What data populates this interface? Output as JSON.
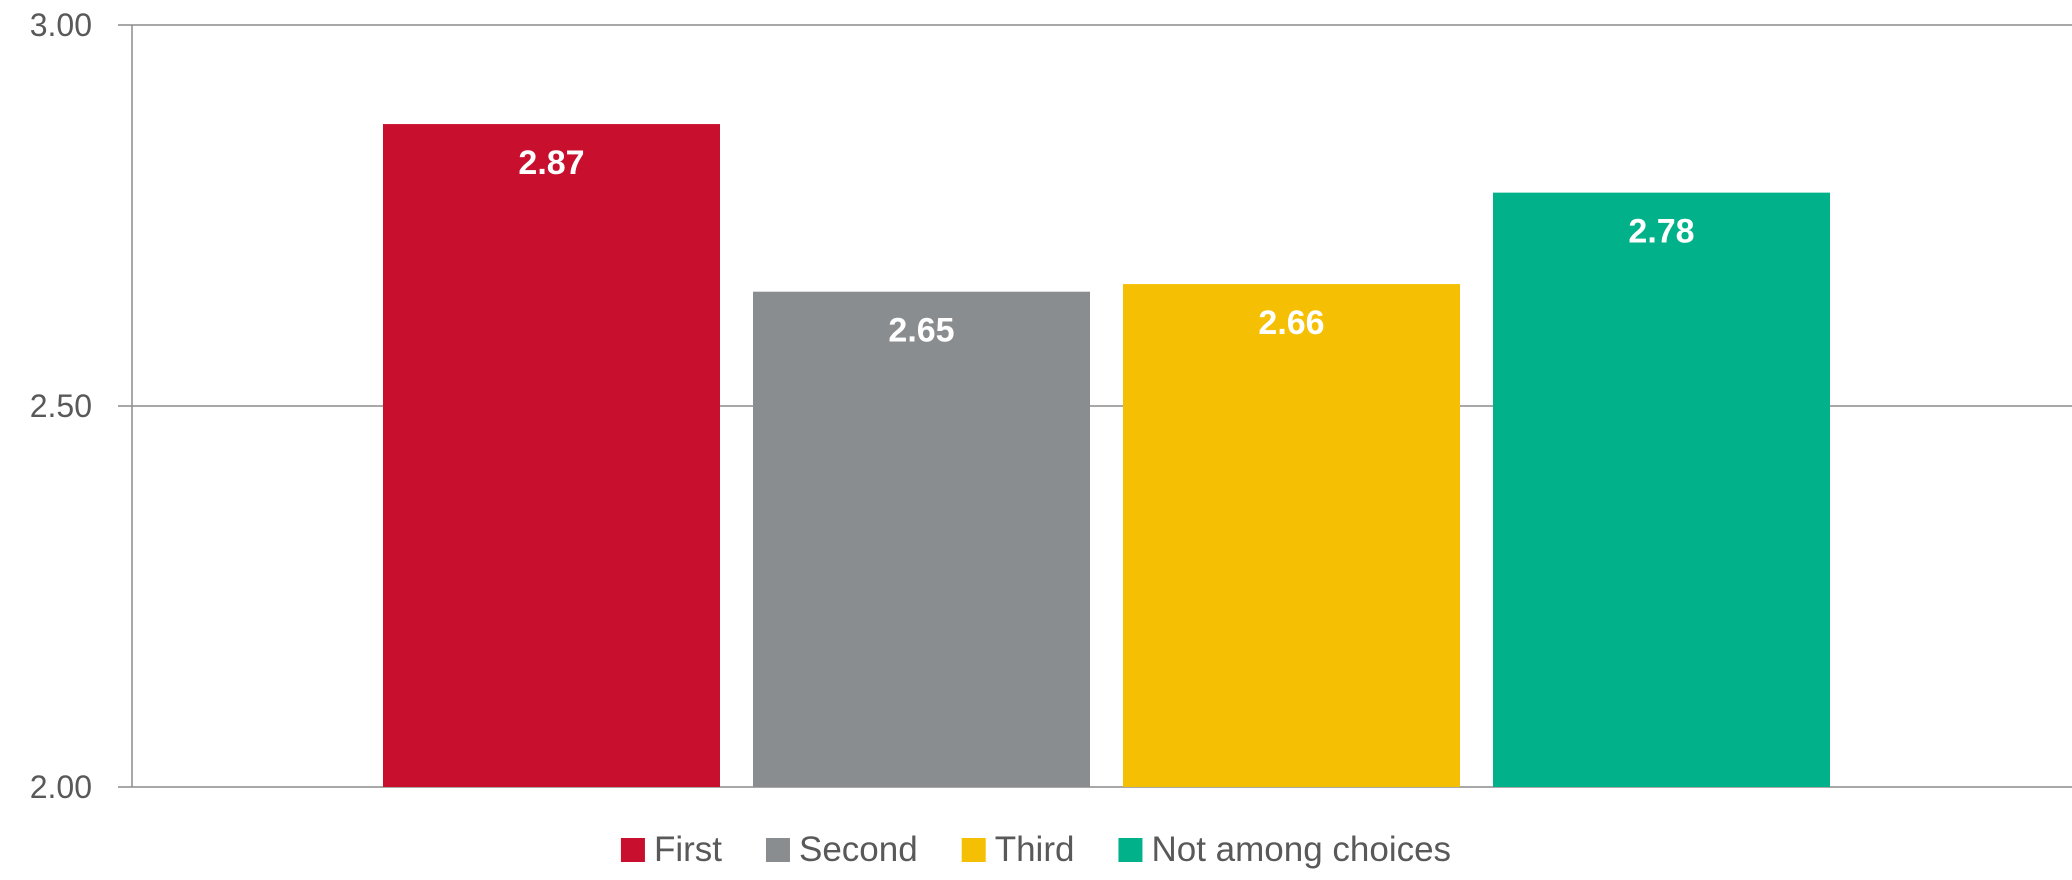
{
  "chart_data": {
    "type": "bar",
    "title": "",
    "xlabel": "",
    "ylabel": "",
    "ylim": [
      2.0,
      3.0
    ],
    "yticks": [
      "2.00",
      "2.50",
      "3.00"
    ],
    "grid": true,
    "legend_position": "bottom",
    "series": [
      {
        "name": "First",
        "value": 2.87,
        "label": "2.87",
        "color": "#C8102E"
      },
      {
        "name": "Second",
        "value": 2.65,
        "label": "2.65",
        "color": "#8A8D8F"
      },
      {
        "name": "Third",
        "value": 2.66,
        "label": "2.66",
        "color": "#F5C003"
      },
      {
        "name": "Not among choices",
        "value": 2.78,
        "label": "2.78",
        "color": "#00B18A"
      }
    ]
  }
}
